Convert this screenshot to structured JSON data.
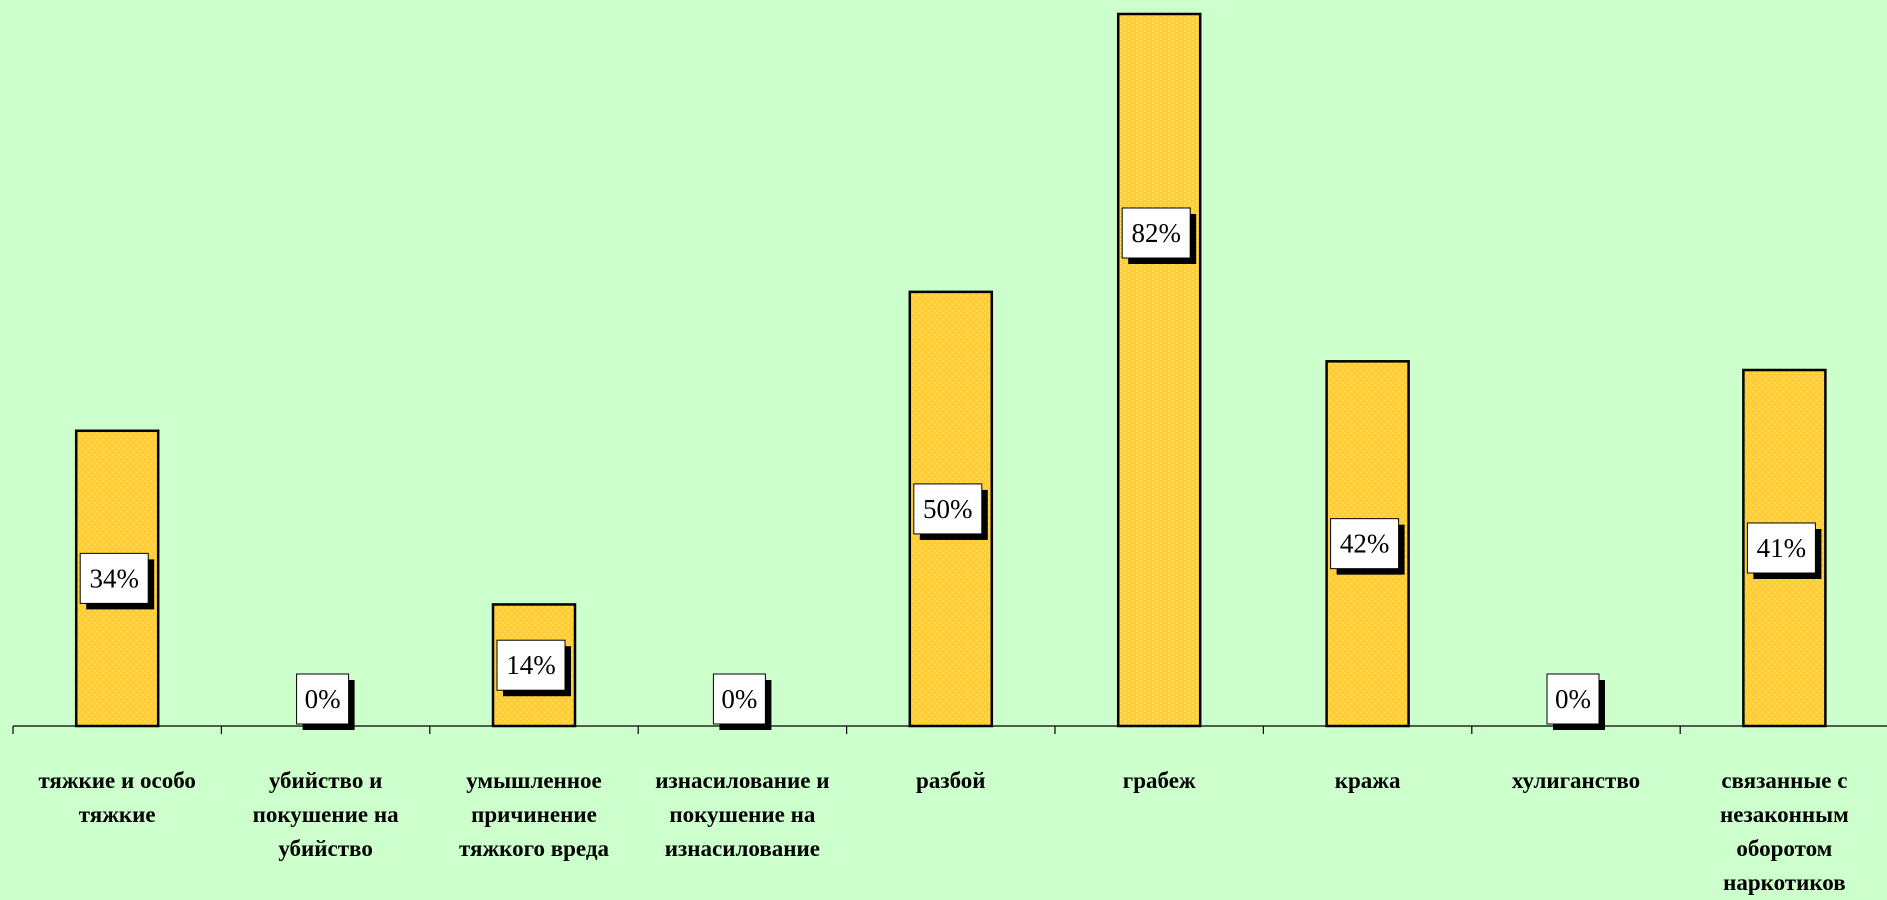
{
  "chart_data": {
    "type": "bar",
    "categories": [
      "тяжкие и особо тяжкие",
      "убийство и покушение на убийство",
      "умышленное причинение тяжкого вреда",
      "изнасилование и покушение на изнасилование",
      "разбой",
      "грабеж",
      "кража",
      "хулиганство",
      "связанные с незаконным оборотом наркотиков"
    ],
    "values": [
      34,
      0,
      14,
      0,
      50,
      82,
      42,
      0,
      41
    ],
    "data_labels": [
      "34%",
      "0%",
      "14%",
      "0%",
      "50%",
      "82%",
      "42%",
      "0%",
      "41%"
    ],
    "title": "",
    "xlabel": "",
    "ylabel": "",
    "ylim": [
      0,
      82
    ],
    "grid": false,
    "legend": "none",
    "colors": {
      "background": "#ccffcc",
      "bar_fill": "#ffcc33",
      "bar_stroke": "#000000",
      "label_box": "#ffffff",
      "label_shadow": "#000000"
    }
  }
}
